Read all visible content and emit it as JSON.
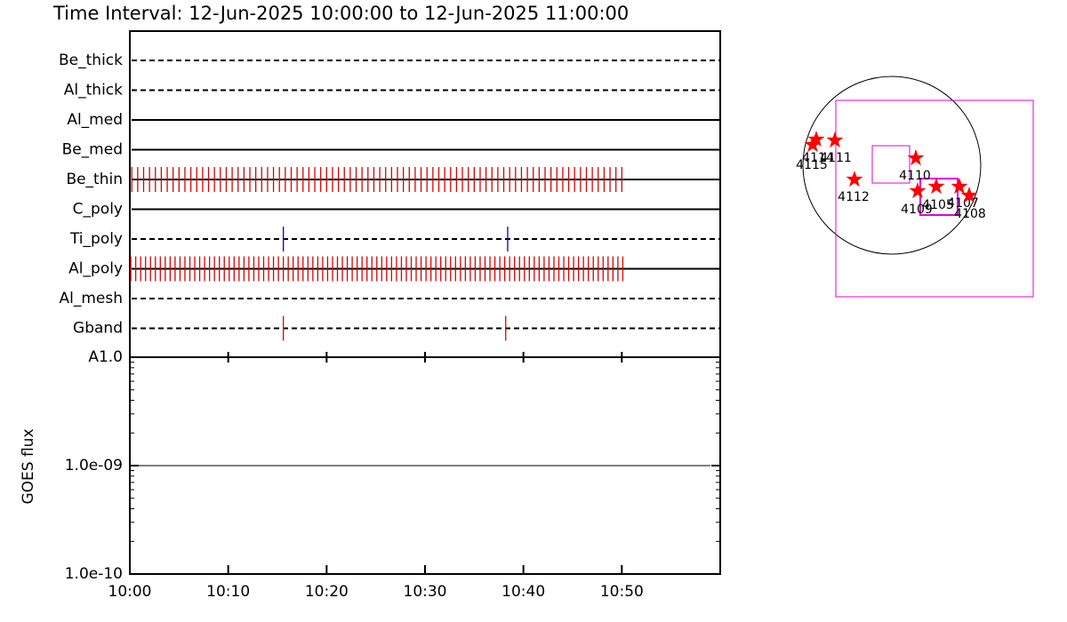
{
  "title": "Time Interval: 12-Jun-2025 10:00:00 to 12-Jun-2025 11:00:00",
  "chart_data": [
    {
      "type": "event",
      "xlim": [
        0,
        60
      ],
      "rows": [
        {
          "name": "Be_thick",
          "style": "dashed",
          "events": []
        },
        {
          "name": "Al_thick",
          "style": "dashed",
          "events": []
        },
        {
          "name": "Al_med",
          "style": "solid",
          "events": []
        },
        {
          "name": "Be_med",
          "style": "solid",
          "events": []
        },
        {
          "name": "Be_thin",
          "style": "solid",
          "color": "#dd0000",
          "events": [
            0.2,
            0.8,
            1.4,
            2.0,
            2.6,
            3.2,
            3.8,
            4.4,
            5.0,
            5.6,
            6.2,
            6.8,
            7.4,
            8.0,
            8.6,
            9.2,
            9.8,
            10.4,
            11.0,
            11.6,
            12.2,
            12.8,
            13.4,
            14.0,
            14.6,
            15.2,
            15.8,
            16.4,
            17.0,
            17.6,
            18.2,
            18.8,
            19.4,
            20.0,
            20.6,
            21.2,
            21.8,
            22.4,
            23.0,
            23.6,
            24.2,
            24.8,
            25.4,
            26.0,
            26.6,
            27.2,
            27.8,
            28.4,
            29.0,
            29.6,
            30.2,
            30.8,
            31.4,
            32.0,
            32.6,
            33.2,
            33.8,
            34.4,
            35.0,
            35.6,
            36.2,
            36.8,
            37.4,
            38.0,
            38.6,
            39.2,
            39.8,
            40.4,
            41.0,
            41.6,
            42.2,
            42.8,
            43.4,
            44.0,
            44.6,
            45.2,
            45.8,
            46.4,
            47.0,
            47.6,
            48.2,
            48.8,
            49.4,
            50.0
          ]
        },
        {
          "name": "C_poly",
          "style": "solid",
          "events": []
        },
        {
          "name": "Ti_poly",
          "style": "dashed",
          "color": "#0000cc",
          "events": [
            15.6,
            38.4
          ]
        },
        {
          "name": "Al_poly",
          "style": "solid",
          "color": "#dd0000",
          "events": [
            0.1,
            0.6,
            1.1,
            1.6,
            2.1,
            2.6,
            3.1,
            3.6,
            4.1,
            4.6,
            5.1,
            5.6,
            6.1,
            6.6,
            7.1,
            7.6,
            8.1,
            8.6,
            9.1,
            9.6,
            10.1,
            10.6,
            11.1,
            11.6,
            12.1,
            12.6,
            13.1,
            13.6,
            14.1,
            14.6,
            15.1,
            15.6,
            16.1,
            16.6,
            17.1,
            17.6,
            18.1,
            18.6,
            19.1,
            19.6,
            20.1,
            20.6,
            21.1,
            21.6,
            22.1,
            22.6,
            23.1,
            23.6,
            24.1,
            24.6,
            25.1,
            25.6,
            26.1,
            26.6,
            27.1,
            27.6,
            28.1,
            28.6,
            29.1,
            29.6,
            30.1,
            30.6,
            31.1,
            31.6,
            32.1,
            32.6,
            33.1,
            33.6,
            34.1,
            34.6,
            35.1,
            35.6,
            36.1,
            36.6,
            37.1,
            37.6,
            38.1,
            38.6,
            39.1,
            39.6,
            40.1,
            40.6,
            41.1,
            41.6,
            42.1,
            42.6,
            43.1,
            43.6,
            44.1,
            44.6,
            45.1,
            45.6,
            46.1,
            46.6,
            47.1,
            47.6,
            48.1,
            48.6,
            49.1,
            49.6,
            50.1
          ]
        },
        {
          "name": "Al_mesh",
          "style": "dashed",
          "events": []
        },
        {
          "name": "Gband",
          "style": "dashed",
          "color": "#dd0000",
          "events": [
            15.6,
            38.2
          ]
        }
      ]
    },
    {
      "type": "line",
      "ylabel": "GOES flux",
      "log": true,
      "x": [
        0,
        59
      ],
      "values": [
        1e-09,
        1e-09
      ],
      "color": "#000000",
      "xlim": [
        0,
        60
      ],
      "xticks": [
        {
          "value": 0,
          "label": "10:00"
        },
        {
          "value": 10,
          "label": "10:10"
        },
        {
          "value": 20,
          "label": "10:20"
        },
        {
          "value": 30,
          "label": "10:30"
        },
        {
          "value": 40,
          "label": "10:40"
        },
        {
          "value": 50,
          "label": "10:50"
        }
      ],
      "ylim": [
        1e-10,
        1e-08
      ],
      "yticks": [
        {
          "value": 1e-08,
          "label": "A1.0"
        },
        {
          "value": 1e-09,
          "label": "1.0e-09"
        },
        {
          "value": 1e-10,
          "label": "1.0e-10"
        }
      ]
    }
  ],
  "sun_map": {
    "regions": [
      "4115",
      "4114",
      "4111",
      "4112",
      "4110",
      "4109",
      "4105",
      "4107",
      "4108"
    ]
  }
}
